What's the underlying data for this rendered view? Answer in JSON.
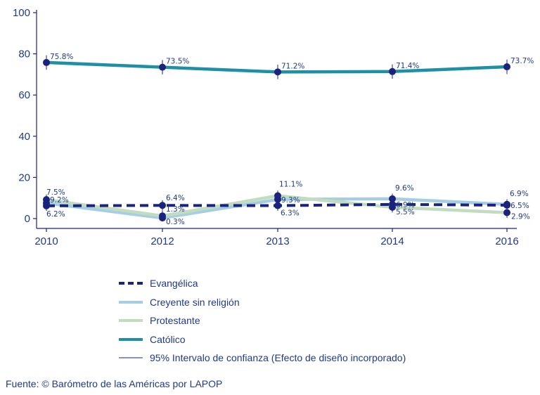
{
  "chart_data": {
    "type": "line",
    "x": [
      "2010",
      "2012",
      "2013",
      "2014",
      "2016"
    ],
    "ylim": [
      0,
      100
    ],
    "yticks": [
      0,
      20,
      40,
      60,
      80,
      100
    ],
    "grid": false,
    "series": [
      {
        "name": "Evangélica",
        "key": "evangelica",
        "values": [
          6.2,
          6.4,
          6.3,
          6.9,
          6.5
        ],
        "labels": [
          "6.2%",
          "6.4%",
          "6.3%",
          "6.9%",
          "6.5%"
        ],
        "color": "#1a237e",
        "style": "dashed"
      },
      {
        "name": "Creyente sin religión",
        "key": "creyente",
        "values": [
          7.5,
          0.3,
          9.3,
          9.6,
          6.9
        ],
        "labels": [
          "7.5%",
          "0.3%",
          "9.3%",
          "9.6%",
          "6.9%"
        ],
        "color": "#a6cde3",
        "style": "solid"
      },
      {
        "name": "Protestante",
        "key": "protestante",
        "values": [
          9.2,
          1.3,
          11.1,
          5.5,
          2.9
        ],
        "labels": [
          "9.2%",
          "1.3%",
          "11.1%",
          "5.5%",
          "2.9%"
        ],
        "color": "#c2dcc0",
        "style": "solid"
      },
      {
        "name": "Católico",
        "key": "catolico",
        "values": [
          75.8,
          73.5,
          71.2,
          71.4,
          73.7
        ],
        "labels": [
          "75.8%",
          "73.5%",
          "71.2%",
          "71.4%",
          "73.7%"
        ],
        "color": "#1f8fa5",
        "style": "solid"
      }
    ],
    "ci_legend": "95% Intervalo de confianza (Efecto de diseño incorporado)",
    "legend_position": "bottom",
    "point_color": "#1a237e"
  },
  "legend": {
    "evangelica": "Evangélica",
    "creyente": "Creyente sin religión",
    "protestante": "Protestante",
    "catolico": "Católico",
    "ci": "95% Intervalo de confianza (Efecto de diseño incorporado)"
  },
  "source": "Fuente: © Barómetro de las Américas por LAPOP"
}
